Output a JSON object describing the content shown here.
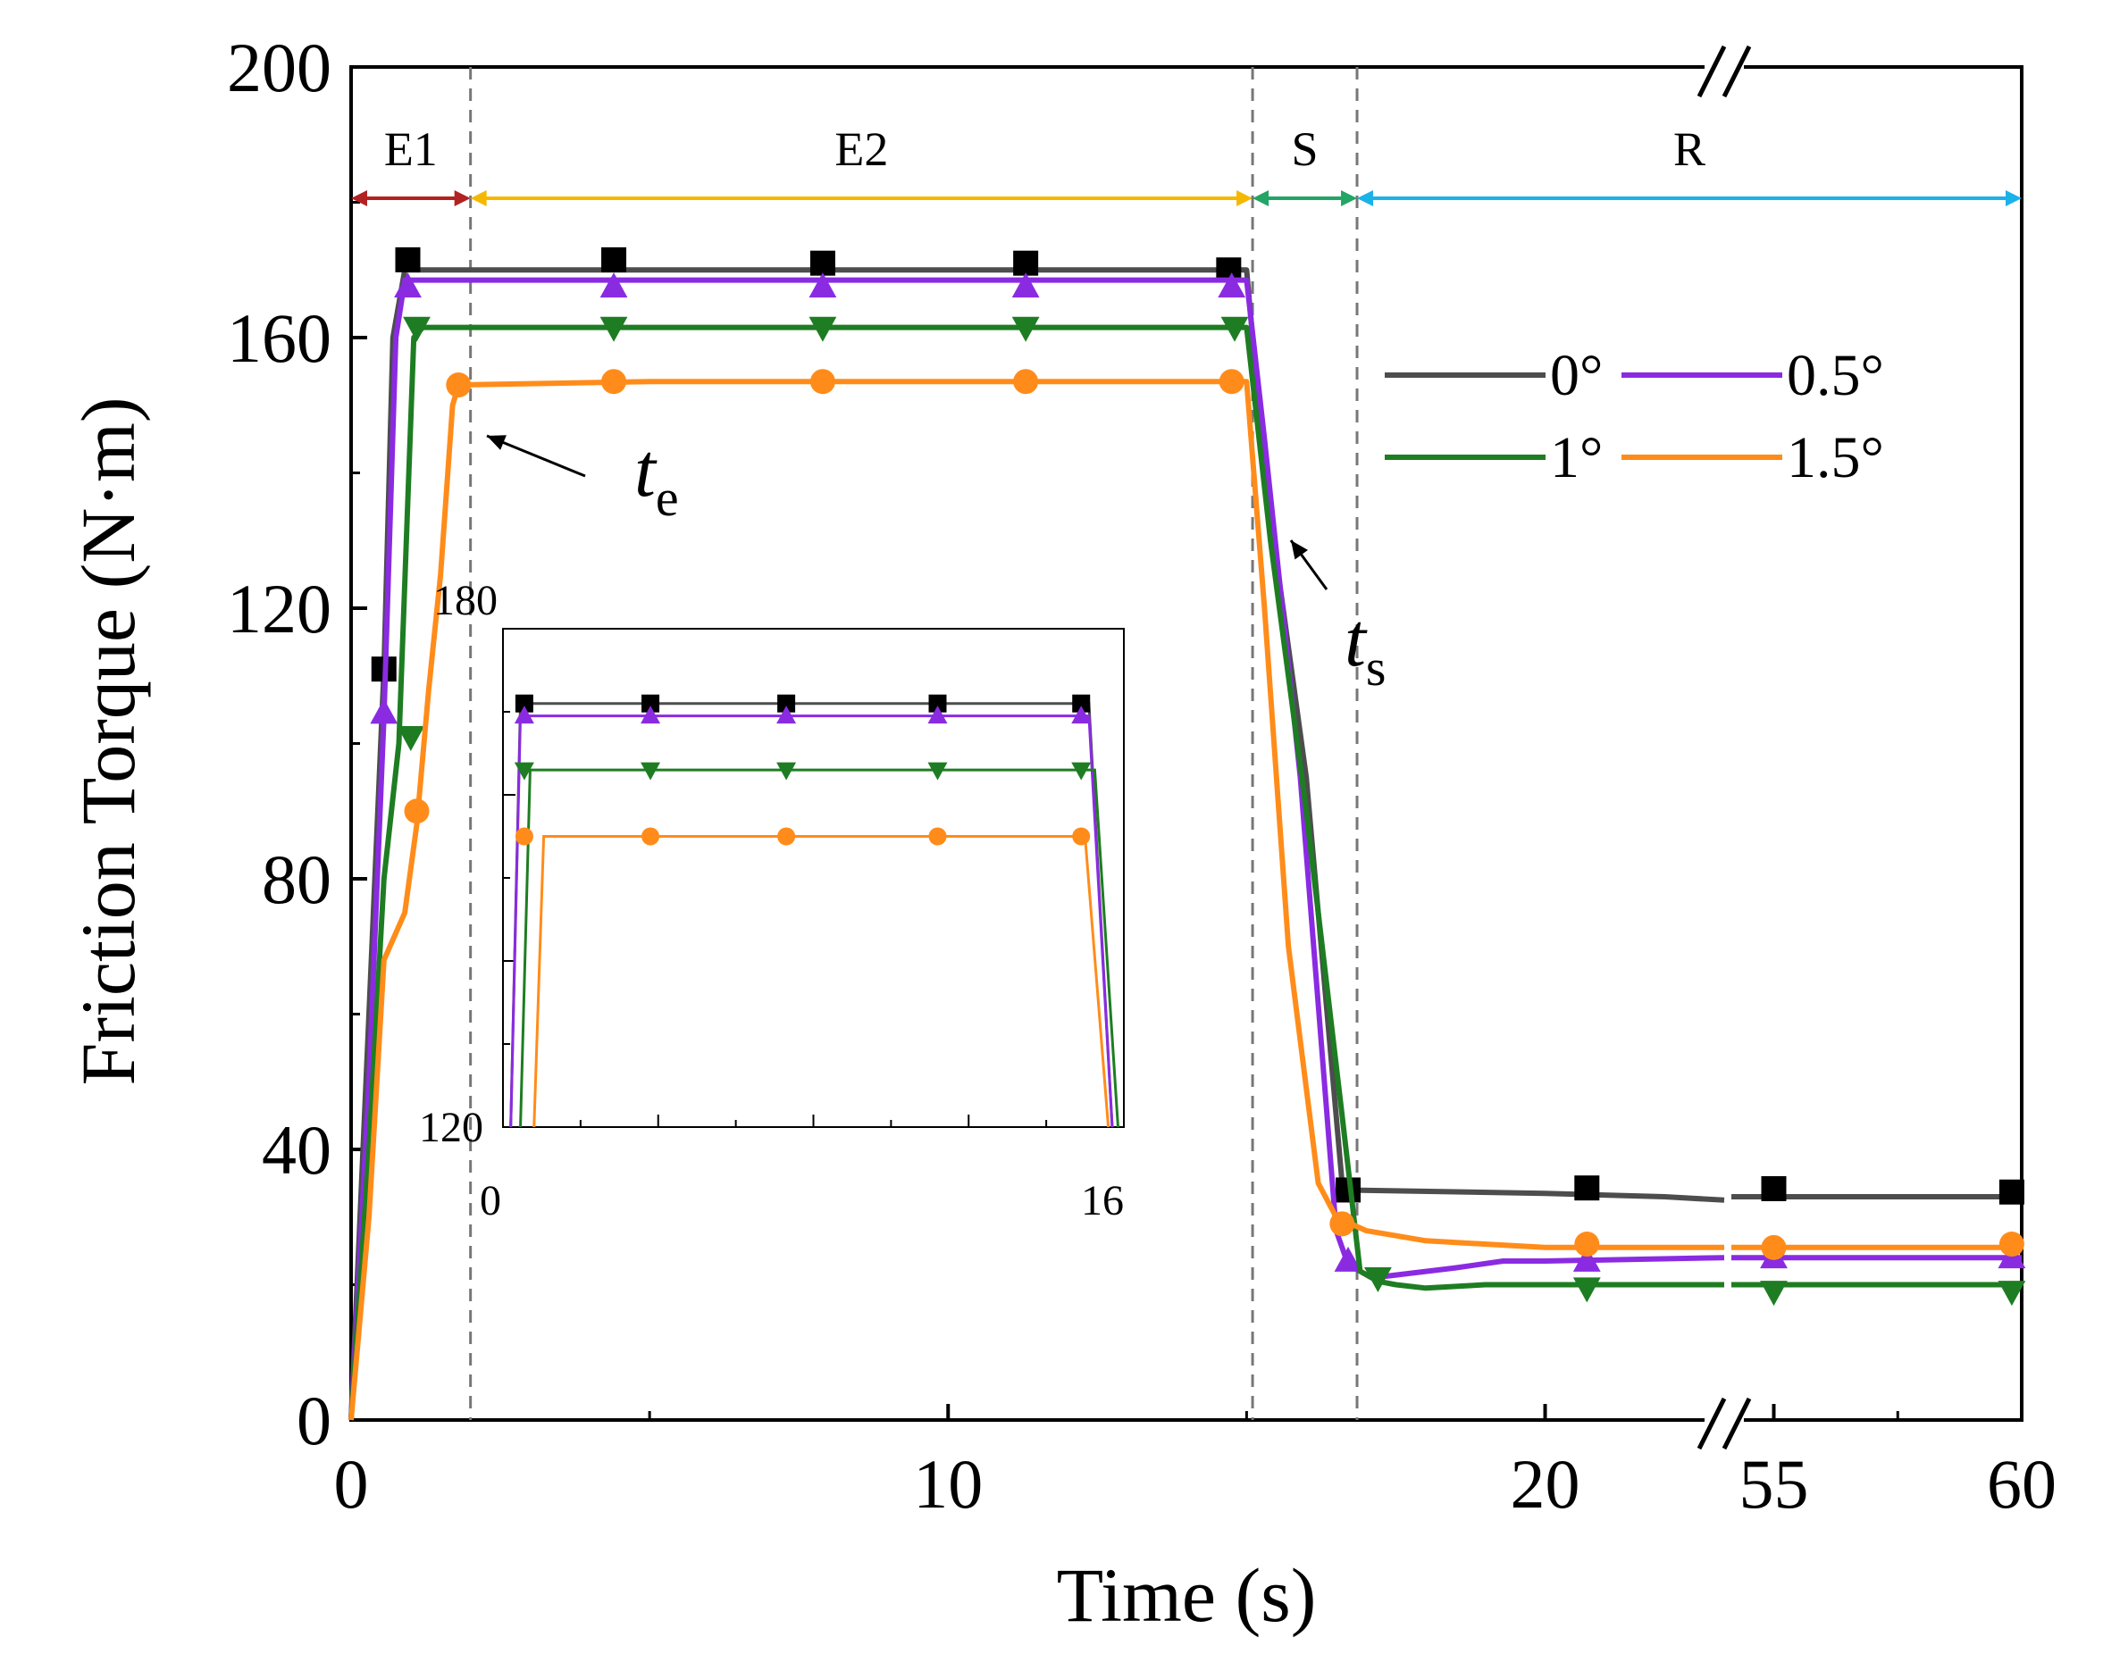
{
  "chart_data": {
    "type": "line",
    "xlabel": "Time (s)",
    "ylabel": "Friction Torque (N·m)",
    "ylim": [
      0,
      200
    ],
    "x_broken_axis": {
      "visible_ranges": [
        [
          0,
          23
        ],
        [
          54,
          60
        ]
      ],
      "break_at": 23
    },
    "x_ticks": [
      0,
      10,
      20,
      55,
      60
    ],
    "y_ticks": [
      0,
      40,
      80,
      120,
      160,
      200
    ],
    "phases": [
      {
        "label": "E1",
        "start": 0,
        "end": 2.0,
        "color": "#b22222"
      },
      {
        "label": "E2",
        "start": 2.0,
        "end": 15.1,
        "color": "#f5b800"
      },
      {
        "label": "S",
        "start": 15.1,
        "end": 16.85,
        "color": "#22a565"
      },
      {
        "label": "R",
        "start": 16.85,
        "end": 60,
        "color": "#1ab2e8"
      }
    ],
    "annotations": [
      {
        "base": "t",
        "sub": "e",
        "x": 2.0
      },
      {
        "base": "t",
        "sub": "s",
        "x": 16.85
      }
    ],
    "series": [
      {
        "name": "0°",
        "color": "#4d4d4d",
        "marker": "square",
        "points": [
          [
            0,
            0
          ],
          [
            0.3,
            60
          ],
          [
            0.55,
            111
          ],
          [
            0.7,
            160
          ],
          [
            0.9,
            170
          ],
          [
            5,
            170
          ],
          [
            10,
            170
          ],
          [
            15,
            170
          ],
          [
            15.3,
            140
          ],
          [
            16,
            95
          ],
          [
            16.6,
            35
          ],
          [
            16.7,
            34
          ],
          [
            20,
            33.5
          ],
          [
            22,
            33
          ],
          [
            23,
            32.5
          ],
          [
            54,
            33
          ],
          [
            60,
            33
          ]
        ],
        "marker_x": [
          0.55,
          0.95,
          4.4,
          7.9,
          11.3,
          14.7,
          16.7,
          20.7,
          55,
          59.8
        ],
        "marker_y": [
          111,
          171.5,
          171.5,
          171,
          171,
          170,
          34,
          34.3,
          34.2,
          33.7
        ]
      },
      {
        "name": "0.5°",
        "color": "#8a2be2",
        "marker": "triangle-up",
        "points": [
          [
            0,
            0
          ],
          [
            0.3,
            50
          ],
          [
            0.55,
            104
          ],
          [
            0.75,
            160
          ],
          [
            0.9,
            168.5
          ],
          [
            5,
            168.5
          ],
          [
            10,
            168.5
          ],
          [
            15,
            168.5
          ],
          [
            15.3,
            145
          ],
          [
            15.9,
            95
          ],
          [
            16.5,
            28
          ],
          [
            16.7,
            23
          ],
          [
            17.1,
            21
          ],
          [
            18.5,
            22.5
          ],
          [
            19.3,
            23.5
          ],
          [
            20,
            23.5
          ],
          [
            23,
            24
          ],
          [
            54,
            24
          ],
          [
            60,
            24
          ]
        ],
        "marker_x": [
          0.55,
          0.95,
          4.4,
          7.9,
          11.3,
          14.75,
          16.7,
          20.7,
          55,
          59.8
        ],
        "marker_y": [
          104.5,
          167.5,
          167.5,
          167.5,
          167.5,
          167.5,
          23.5,
          23.5,
          24,
          24
        ]
      },
      {
        "name": "1°",
        "color": "#1e7d22",
        "marker": "triangle-down",
        "points": [
          [
            0,
            0
          ],
          [
            0.3,
            40
          ],
          [
            0.55,
            80
          ],
          [
            0.8,
            100
          ],
          [
            1.05,
            160
          ],
          [
            1.2,
            161.5
          ],
          [
            5,
            161.5
          ],
          [
            10,
            161.5
          ],
          [
            15,
            161.5
          ],
          [
            15.4,
            130
          ],
          [
            16,
            90
          ],
          [
            16.6,
            45
          ],
          [
            16.9,
            22
          ],
          [
            17.2,
            20.5
          ],
          [
            17.5,
            20
          ],
          [
            18,
            19.5
          ],
          [
            19,
            20
          ],
          [
            20,
            20
          ],
          [
            23,
            20
          ],
          [
            54,
            20
          ],
          [
            60,
            20
          ]
        ],
        "marker_x": [
          1.0,
          1.1,
          4.4,
          7.9,
          11.3,
          14.8,
          17.2,
          20.7,
          55,
          59.8
        ],
        "marker_y": [
          101,
          161.5,
          161.5,
          161.5,
          161.5,
          161.5,
          21,
          19.5,
          19,
          19
        ]
      },
      {
        "name": "1.5°",
        "color": "#ff8c1a",
        "marker": "circle",
        "points": [
          [
            0,
            0
          ],
          [
            0.3,
            30
          ],
          [
            0.55,
            68
          ],
          [
            0.9,
            75
          ],
          [
            1.1,
            88
          ],
          [
            1.3,
            108
          ],
          [
            1.5,
            125
          ],
          [
            1.7,
            150
          ],
          [
            1.8,
            153
          ],
          [
            5,
            153.5
          ],
          [
            10,
            153.5
          ],
          [
            15,
            153.5
          ],
          [
            15.3,
            120
          ],
          [
            15.7,
            70
          ],
          [
            16.2,
            35
          ],
          [
            16.5,
            30
          ],
          [
            17,
            28
          ],
          [
            18,
            26.5
          ],
          [
            20,
            25.5
          ],
          [
            23,
            25.5
          ],
          [
            54,
            25.5
          ],
          [
            60,
            25.5
          ]
        ],
        "marker_x": [
          1.1,
          1.8,
          4.4,
          7.9,
          11.3,
          14.75,
          16.6,
          20.7,
          55,
          59.8
        ],
        "marker_y": [
          90,
          153,
          153.5,
          153.5,
          153.5,
          153.5,
          29,
          26,
          25.5,
          26
        ]
      }
    ],
    "inset": {
      "xlim": [
        0,
        16
      ],
      "ylim": [
        120,
        180
      ],
      "x_tick_labels": [
        "0",
        "16"
      ],
      "y_tick_labels": [
        "180",
        "120"
      ],
      "series_values": {
        "0°": 171,
        "0.5°": 169.5,
        "1°": 163,
        "1.5°": 155
      }
    }
  },
  "legend": {
    "entries": [
      {
        "label": "0°"
      },
      {
        "label": "0.5°"
      },
      {
        "label": "1°"
      },
      {
        "label": "1.5°"
      }
    ]
  }
}
